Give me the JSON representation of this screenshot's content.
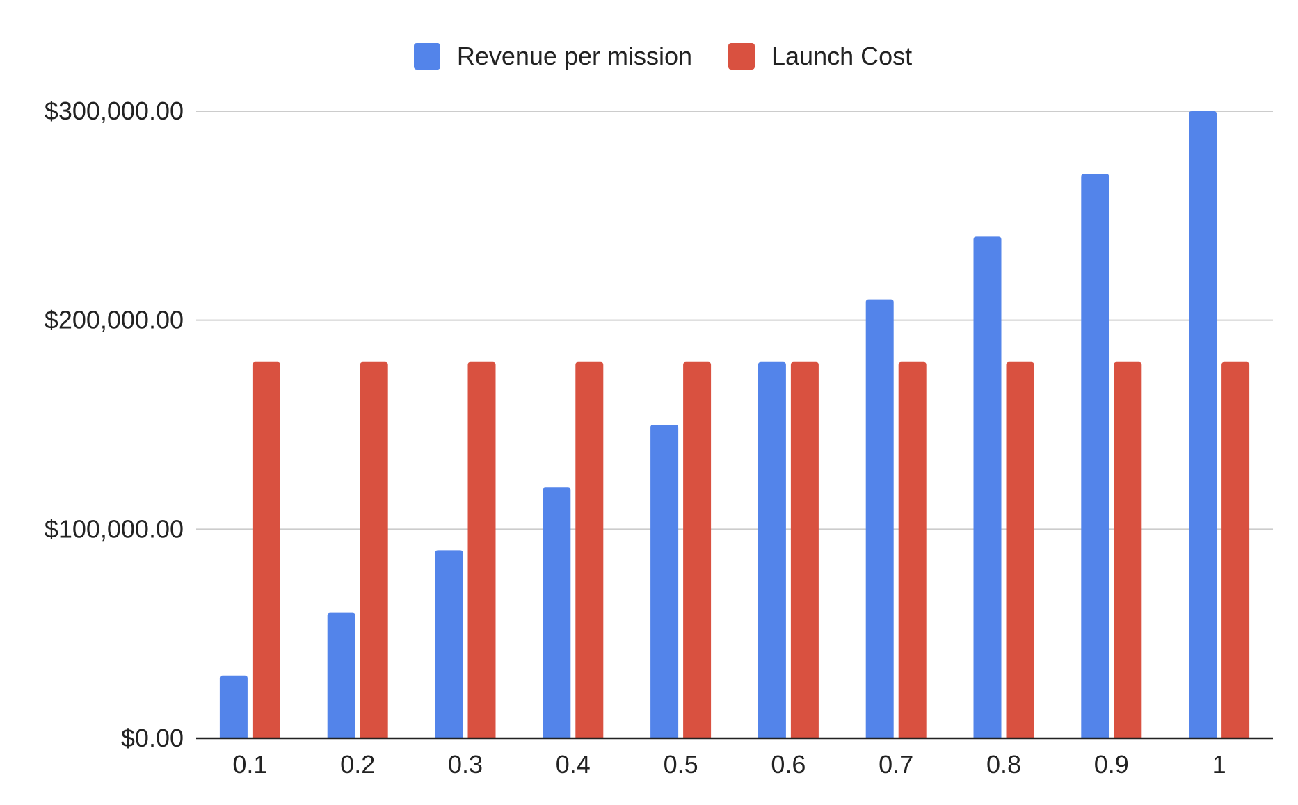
{
  "legend": {
    "series1_label": "Revenue per mission",
    "series2_label": "Launch Cost"
  },
  "chart_data": {
    "type": "bar",
    "title": "",
    "xlabel": "",
    "ylabel": "",
    "categories": [
      "0.1",
      "0.2",
      "0.3",
      "0.4",
      "0.5",
      "0.6",
      "0.7",
      "0.8",
      "0.9",
      "1"
    ],
    "series": [
      {
        "name": "Revenue per mission",
        "color": "#5384ea",
        "values": [
          30000,
          60000,
          90000,
          120000,
          150000,
          180000,
          210000,
          240000,
          270000,
          300000
        ]
      },
      {
        "name": "Launch Cost",
        "color": "#d95140",
        "values": [
          180000,
          180000,
          180000,
          180000,
          180000,
          180000,
          180000,
          180000,
          180000,
          180000
        ]
      }
    ],
    "ylim": [
      0,
      300000
    ],
    "yticks": [
      0,
      100000,
      200000,
      300000
    ],
    "ytick_labels": [
      "$0.00",
      "$100,000.00",
      "$200,000.00",
      "$300,000.00"
    ],
    "grid": true,
    "legend_position": "top-center",
    "gridline_color": "#cccccc",
    "axis_color": "#222222"
  }
}
